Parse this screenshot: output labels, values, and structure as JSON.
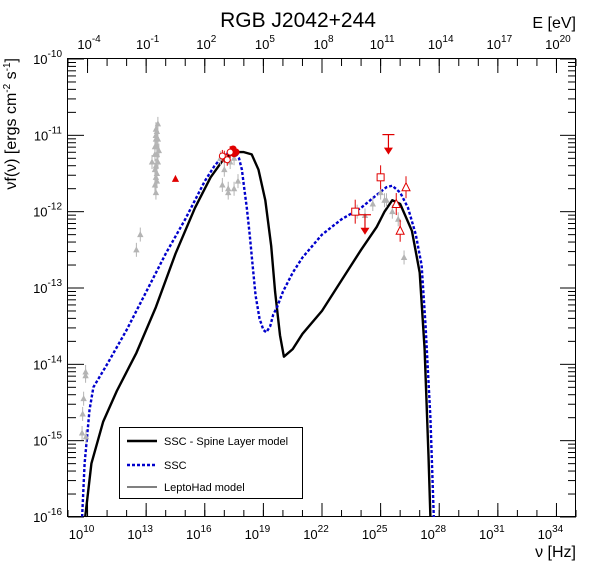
{
  "chart_data": {
    "type": "scatter",
    "title": "RGB J2042+244",
    "x_axis": {
      "label": "ν [Hz]",
      "scale": "log",
      "range": [
        1000000000.0,
        1e+35
      ],
      "ticks": [
        {
          "value": 10000000000.0,
          "base": "10",
          "exp": "10"
        },
        {
          "value": 10000000000000.0,
          "base": "10",
          "exp": "13"
        },
        {
          "value": 1e+16,
          "base": "10",
          "exp": "16"
        },
        {
          "value": 1e+19,
          "base": "10",
          "exp": "19"
        },
        {
          "value": 1e+22,
          "base": "10",
          "exp": "22"
        },
        {
          "value": 1e+25,
          "base": "10",
          "exp": "25"
        },
        {
          "value": 1e+28,
          "base": "10",
          "exp": "28"
        },
        {
          "value": 1e+31,
          "base": "10",
          "exp": "31"
        },
        {
          "value": 1e+34,
          "base": "10",
          "exp": "34"
        }
      ]
    },
    "x_top_axis": {
      "label": "E [eV]",
      "scale": "log",
      "ticks": [
        {
          "value": 0.0001,
          "base": "10",
          "exp": "-4"
        },
        {
          "value": 0.1,
          "base": "10",
          "exp": "-1"
        },
        {
          "value": 100.0,
          "base": "10",
          "exp": "2"
        },
        {
          "value": 100000.0,
          "base": "10",
          "exp": "5"
        },
        {
          "value": 100000000.0,
          "base": "10",
          "exp": "8"
        },
        {
          "value": 100000000000.0,
          "base": "10",
          "exp": "11"
        },
        {
          "value": 100000000000000.0,
          "base": "10",
          "exp": "14"
        },
        {
          "value": 1e+17,
          "base": "10",
          "exp": "17"
        },
        {
          "value": 1e+20,
          "base": "10",
          "exp": "20"
        }
      ]
    },
    "y_axis": {
      "label": "νf(ν) [ergs cm⁻² s⁻¹]",
      "label_parts": {
        "a": "νf(ν) [ergs cm",
        "b": "-2",
        "c": " s",
        "d": "-1",
        "e": "]"
      },
      "scale": "log",
      "range": [
        1e-16,
        1e-10
      ],
      "ticks": [
        {
          "value": 1e-16,
          "base": "10",
          "exp": "-16"
        },
        {
          "value": 1e-15,
          "base": "10",
          "exp": "-15"
        },
        {
          "value": 1e-14,
          "base": "10",
          "exp": "-14"
        },
        {
          "value": 1e-13,
          "base": "10",
          "exp": "-13"
        },
        {
          "value": 1e-12,
          "base": "10",
          "exp": "-12"
        },
        {
          "value": 1e-11,
          "base": "10",
          "exp": "-11"
        },
        {
          "value": 1e-10,
          "base": "10",
          "exp": "-10"
        }
      ]
    },
    "grid": false,
    "legend": {
      "placement": "bottom-left",
      "entries": [
        {
          "label": "SSC - Spine Layer model",
          "style": "solid-thick",
          "color": "#000000"
        },
        {
          "label": "SSC",
          "style": "dashed",
          "color": "#0000cc"
        },
        {
          "label": "LeptoHad model",
          "style": "solid-thin",
          "color": "#000000"
        }
      ]
    },
    "colors": {
      "archival": "#b4b4b4",
      "observed": "#e00000",
      "ssc": "#0000cc",
      "spine": "#000000"
    },
    "series": [
      {
        "name": "SSC - Spine Layer model",
        "kind": "line",
        "color": "#000000",
        "dash": "solid",
        "width": 2.4,
        "logx": [
          9.88,
          10.2,
          10.8,
          11.5,
          12.5,
          13.5,
          14.5,
          15.5,
          16.3,
          17.0,
          17.6,
          18.0,
          18.4,
          18.75,
          19.1,
          19.4,
          19.6,
          19.85,
          20.05,
          20.5,
          21.0,
          22.0,
          23.0,
          24.0,
          24.8,
          25.2,
          25.6,
          26.0,
          26.6,
          27.0,
          27.25,
          27.45,
          27.55
        ],
        "logy": [
          -16,
          -15.3,
          -14.75,
          -14.35,
          -13.85,
          -13.25,
          -12.55,
          -11.95,
          -11.55,
          -11.3,
          -11.22,
          -11.22,
          -11.25,
          -11.45,
          -11.85,
          -12.45,
          -13.05,
          -13.62,
          -13.9,
          -13.8,
          -13.6,
          -13.3,
          -12.9,
          -12.5,
          -12.2,
          -12.0,
          -11.85,
          -11.9,
          -12.25,
          -12.8,
          -13.8,
          -15.2,
          -16
        ]
      },
      {
        "name": "SSC",
        "kind": "line",
        "color": "#0000cc",
        "dash": "dashed",
        "width": 2.4,
        "logx": [
          9.72,
          9.85,
          10.1,
          10.3,
          11.0,
          12.0,
          13.0,
          14.0,
          15.0,
          16.0,
          16.5,
          17.0,
          17.5,
          17.75,
          17.9,
          18.0,
          18.15,
          18.3,
          18.45,
          18.6,
          18.8,
          19.0,
          19.15,
          19.35,
          19.5,
          19.7,
          20.0,
          20.5,
          21.0,
          22.0,
          23.0,
          24.0,
          24.8,
          25.3,
          25.6,
          26.0,
          26.4,
          26.8,
          27.1,
          27.3,
          27.55,
          27.72
        ],
        "logy": [
          -16,
          -15.3,
          -14.6,
          -14.3,
          -14.0,
          -13.55,
          -13.05,
          -12.55,
          -12.1,
          -11.6,
          -11.4,
          -11.25,
          -11.22,
          -11.3,
          -11.45,
          -11.65,
          -11.95,
          -12.3,
          -12.7,
          -13.1,
          -13.4,
          -13.55,
          -13.58,
          -13.5,
          -13.35,
          -13.25,
          -13.05,
          -12.8,
          -12.6,
          -12.3,
          -12.1,
          -11.95,
          -11.78,
          -11.68,
          -11.66,
          -11.75,
          -11.95,
          -12.3,
          -12.7,
          -13.5,
          -14.7,
          -16
        ]
      }
    ],
    "archival_points": {
      "color": "#b4b4b4",
      "logx": [
        9.75,
        9.8,
        9.72,
        9.9,
        9.9,
        9.92,
        12.5,
        12.7,
        13.3,
        13.45,
        13.5,
        13.55,
        13.6,
        13.45,
        13.5,
        13.55,
        13.5,
        13.6,
        13.55,
        13.45,
        13.5,
        13.6,
        13.45,
        13.5,
        13.55,
        13.5,
        13.55,
        13.65,
        13.5,
        16.8,
        17.0,
        17.3,
        17.5,
        17.7,
        16.9,
        17.2,
        17.5,
        17.2,
        23.8,
        24.2,
        24.6,
        25.0,
        25.3,
        25.6,
        25.9,
        26.2,
        25.2
      ],
      "logy": [
        -14.65,
        -14.45,
        -14.9,
        -14.1,
        -14.15,
        -14.95,
        -12.5,
        -12.3,
        -11.35,
        -11.15,
        -11.0,
        -11.25,
        -10.85,
        -11.45,
        -11.55,
        -10.95,
        -11.05,
        -11.35,
        -11.6,
        -11.65,
        -11.75,
        -11.05,
        -11.25,
        -11.0,
        -11.15,
        -11.4,
        -11.5,
        -11.2,
        -10.92,
        -11.3,
        -11.45,
        -11.35,
        -11.3,
        -11.6,
        -11.65,
        -11.7,
        -11.7,
        -11.75,
        -12.0,
        -12.05,
        -11.9,
        -11.75,
        -11.85,
        -12.0,
        -12.1,
        -12.6,
        -11.85
      ]
    },
    "observed_points": {
      "color": "#e00000",
      "filled_circles": {
        "logx": [
          17.45,
          17.6,
          17.5
        ],
        "logy": [
          -11.18,
          -11.22,
          -11.24
        ]
      },
      "filled_triangles": {
        "logx": [
          14.5
        ],
        "logy": [
          -11.57
        ]
      },
      "open_circles": {
        "logx": [
          17.0,
          17.15,
          17.3,
          16.9
        ],
        "logy": [
          -11.28,
          -11.32,
          -11.22,
          -11.27
        ]
      },
      "open_squares": {
        "logx": [
          23.7,
          25.0
        ],
        "logy": [
          -12.0,
          -11.55
        ]
      },
      "open_triangles": {
        "logx": [
          25.8,
          26.0,
          26.3
        ],
        "logy": [
          -11.9,
          -12.25,
          -11.68
        ]
      },
      "upper_limits": {
        "logx": [
          24.2,
          25.4
        ],
        "logy": [
          -12.25,
          -11.2
        ]
      }
    }
  }
}
